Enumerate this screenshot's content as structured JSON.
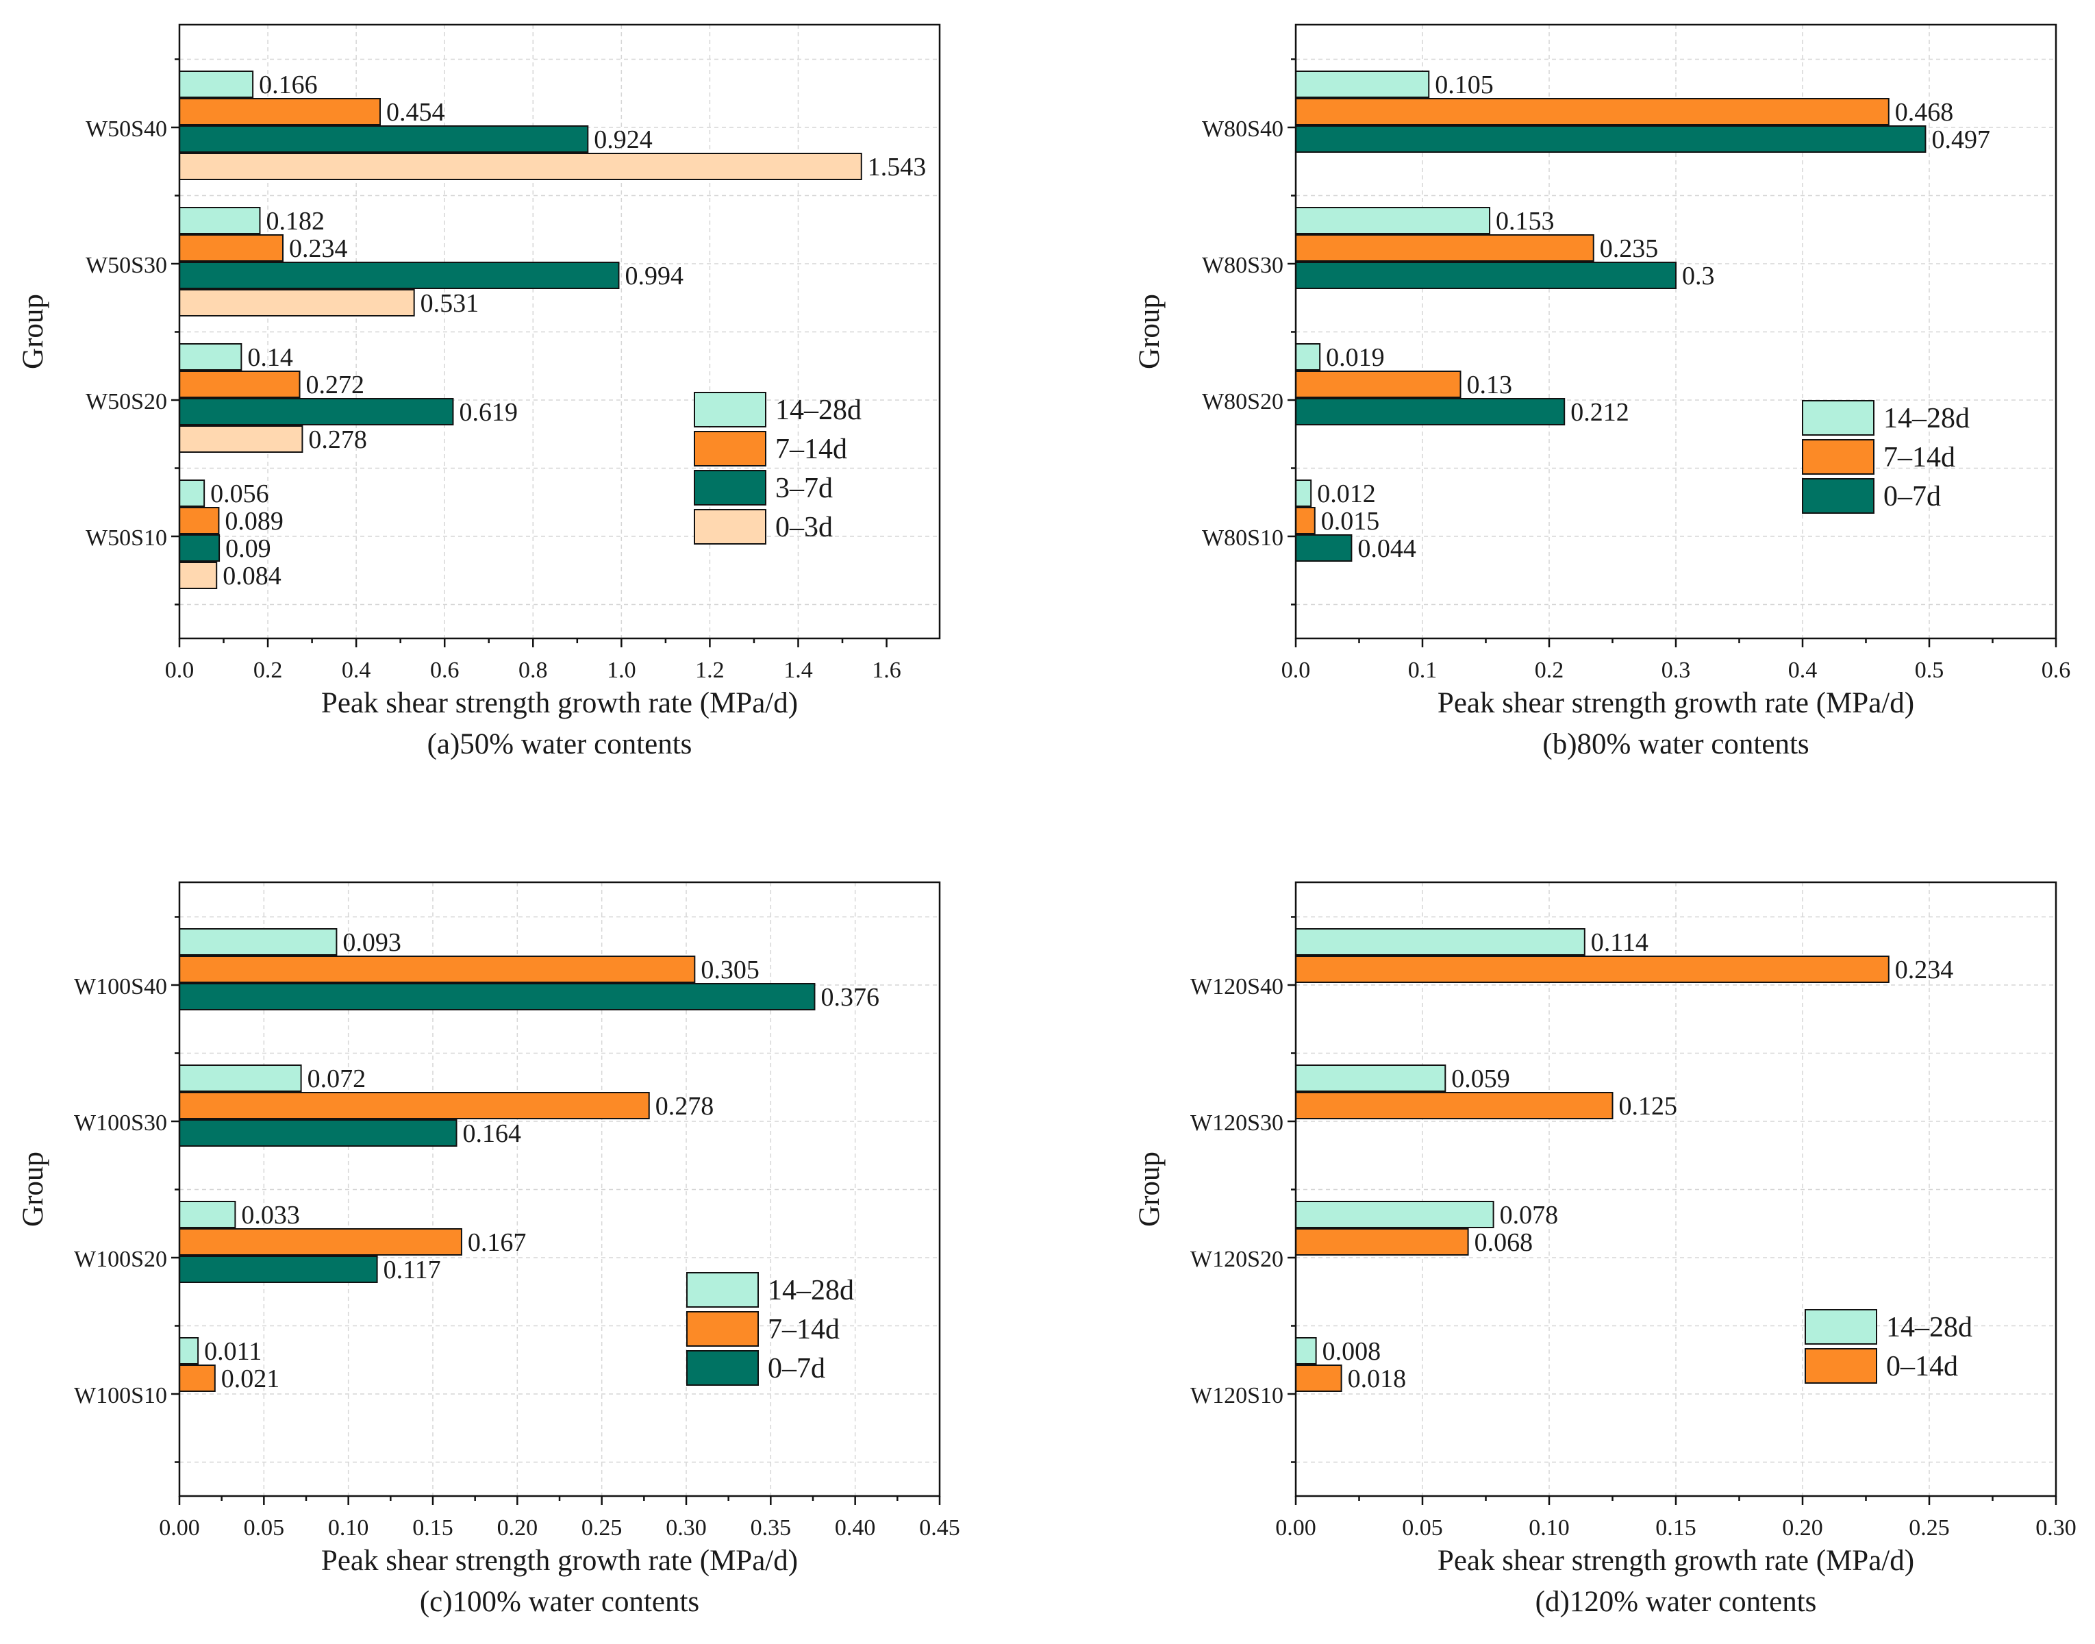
{
  "chart_data": [
    {
      "type": "bar",
      "orientation": "horizontal",
      "caption": "(a)50% water contents",
      "xlabel": "Peak shear strength growth rate (MPa/d)",
      "ylabel": "Group",
      "xlim": [
        0,
        1.72
      ],
      "xticks": [
        0,
        0.2,
        0.4,
        0.6,
        0.8,
        1.0,
        1.2,
        1.4,
        1.6
      ],
      "xtick_labels": [
        "0.0",
        "0.2",
        "0.4",
        "0.6",
        "0.8",
        "1.0",
        "1.2",
        "1.4",
        "1.6"
      ],
      "categories": [
        "W50S40",
        "W50S30",
        "W50S20",
        "W50S10"
      ],
      "series": [
        {
          "name": "14–28d",
          "color": "#b2f0dc",
          "values": [
            0.166,
            0.182,
            0.14,
            0.056
          ],
          "labels": [
            "0.166",
            "0.182",
            "0.14",
            "0.056"
          ]
        },
        {
          "name": "7–14d",
          "color": "#fc8a26",
          "values": [
            0.454,
            0.234,
            0.272,
            0.089
          ],
          "labels": [
            "0.454",
            "0.234",
            "0.272",
            "0.089"
          ]
        },
        {
          "name": "3–7d",
          "color": "#007363",
          "values": [
            0.924,
            0.994,
            0.619,
            0.09
          ],
          "labels": [
            "0.924",
            "0.994",
            "0.619",
            "0.09"
          ]
        },
        {
          "name": "0–3d",
          "color": "#ffd8b0",
          "values": [
            1.543,
            0.531,
            0.278,
            0.084
          ],
          "labels": [
            "1.543",
            "0.531",
            "0.278",
            "0.084"
          ]
        }
      ],
      "legend_position": "right-middle",
      "grid": true
    },
    {
      "type": "bar",
      "orientation": "horizontal",
      "caption": "(b)80% water contents",
      "xlabel": "Peak shear strength growth rate (MPa/d)",
      "ylabel": "Group",
      "xlim": [
        0,
        0.6
      ],
      "xticks": [
        0,
        0.1,
        0.2,
        0.3,
        0.4,
        0.5,
        0.6
      ],
      "xtick_labels": [
        "0.0",
        "0.1",
        "0.2",
        "0.3",
        "0.4",
        "0.5",
        "0.6"
      ],
      "categories": [
        "W80S40",
        "W80S30",
        "W80S20",
        "W80S10"
      ],
      "series": [
        {
          "name": "14–28d",
          "color": "#b2f0dc",
          "values": [
            0.105,
            0.153,
            0.019,
            0.012
          ],
          "labels": [
            "0.105",
            "0.153",
            "0.019",
            "0.012"
          ]
        },
        {
          "name": "7–14d",
          "color": "#fc8a26",
          "values": [
            0.468,
            0.235,
            0.13,
            0.015
          ],
          "labels": [
            "0.468",
            "0.235",
            "0.13",
            "0.015"
          ]
        },
        {
          "name": "0–7d",
          "color": "#007363",
          "values": [
            0.497,
            0.3,
            0.212,
            0.044
          ],
          "labels": [
            "0.497",
            "0.3",
            "0.212",
            "0.044"
          ]
        }
      ],
      "legend_position": "right-middle",
      "grid": true
    },
    {
      "type": "bar",
      "orientation": "horizontal",
      "caption": "(c)100% water contents",
      "xlabel": "Peak shear strength growth rate (MPa/d)",
      "ylabel": "Group",
      "xlim": [
        0,
        0.45
      ],
      "xticks": [
        0,
        0.05,
        0.1,
        0.15,
        0.2,
        0.25,
        0.3,
        0.35,
        0.4,
        0.45
      ],
      "xtick_labels": [
        "0.00",
        "0.05",
        "0.10",
        "0.15",
        "0.20",
        "0.25",
        "0.30",
        "0.35",
        "0.40",
        "0.45"
      ],
      "categories": [
        "W100S40",
        "W100S30",
        "W100S20",
        "W100S10"
      ],
      "series": [
        {
          "name": "14–28d",
          "color": "#b2f0dc",
          "values": [
            0.093,
            0.072,
            0.033,
            0.011
          ],
          "labels": [
            "0.093",
            "0.072",
            "0.033",
            "0.011"
          ]
        },
        {
          "name": "7–14d",
          "color": "#fc8a26",
          "values": [
            0.305,
            0.278,
            0.167,
            0.021
          ],
          "labels": [
            "0.305",
            "0.278",
            "0.167",
            "0.021"
          ]
        },
        {
          "name": "0–7d",
          "color": "#007363",
          "values": [
            0.376,
            0.164,
            0.117,
            null
          ],
          "labels": [
            "0.376",
            "0.164",
            "0.117",
            null
          ]
        }
      ],
      "legend_position": "right-middle",
      "grid": true
    },
    {
      "type": "bar",
      "orientation": "horizontal",
      "caption": "(d)120% water contents",
      "xlabel": "Peak shear strength growth rate (MPa/d)",
      "ylabel": "Group",
      "xlim": [
        0,
        0.3
      ],
      "xticks": [
        0,
        0.05,
        0.1,
        0.15,
        0.2,
        0.25,
        0.3
      ],
      "xtick_labels": [
        "0.00",
        "0.05",
        "0.10",
        "0.15",
        "0.20",
        "0.25",
        "0.30"
      ],
      "categories": [
        "W120S40",
        "W120S30",
        "W120S20",
        "W120S10"
      ],
      "series": [
        {
          "name": "14–28d",
          "color": "#b2f0dc",
          "values": [
            0.114,
            0.059,
            0.078,
            0.008
          ],
          "labels": [
            "0.114",
            "0.059",
            "0.078",
            "0.008"
          ]
        },
        {
          "name": "0–14d",
          "color": "#fc8a26",
          "values": [
            0.234,
            0.125,
            0.068,
            0.018
          ],
          "labels": [
            "0.234",
            "0.125",
            "0.068",
            "0.018"
          ]
        }
      ],
      "legend_position": "right-lower",
      "grid": true
    }
  ]
}
